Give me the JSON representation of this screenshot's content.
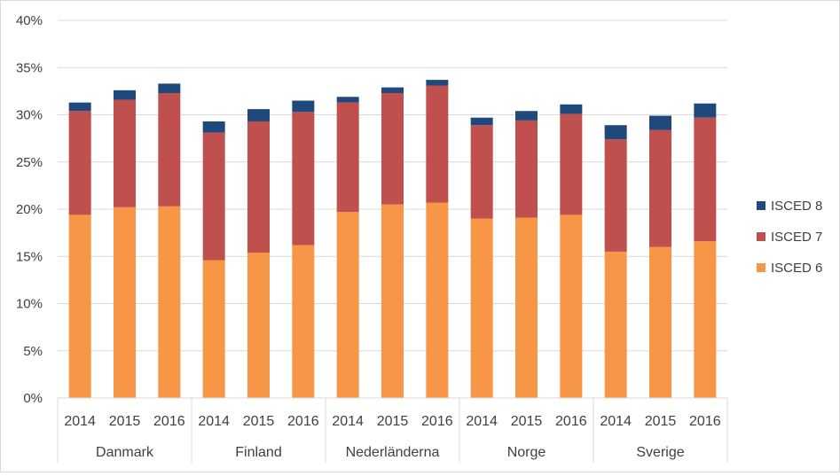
{
  "chart_data": {
    "type": "bar",
    "stacked": true,
    "groups": [
      {
        "name": "Danmark",
        "categories": [
          "2014",
          "2015",
          "2016"
        ]
      },
      {
        "name": "Finland",
        "categories": [
          "2014",
          "2015",
          "2016"
        ]
      },
      {
        "name": "Nederländerna",
        "categories": [
          "2014",
          "2015",
          "2016"
        ]
      },
      {
        "name": "Norge",
        "categories": [
          "2014",
          "2015",
          "2016"
        ]
      },
      {
        "name": "Sverige",
        "categories": [
          "2014",
          "2015",
          "2016"
        ]
      }
    ],
    "series": [
      {
        "name": "ISCED 6",
        "color": "#f79646",
        "values": [
          19.4,
          20.2,
          20.3,
          14.6,
          15.4,
          16.2,
          19.7,
          20.5,
          20.7,
          19.0,
          19.1,
          19.4,
          15.5,
          16.0,
          16.6
        ]
      },
      {
        "name": "ISCED 7",
        "color": "#c0504d",
        "values": [
          11.0,
          11.4,
          12.0,
          13.5,
          13.9,
          14.1,
          11.6,
          11.8,
          12.4,
          9.9,
          10.3,
          10.7,
          11.9,
          12.4,
          13.1
        ]
      },
      {
        "name": "ISCED 8",
        "color": "#1f497d",
        "values": [
          0.9,
          1.0,
          1.0,
          1.2,
          1.3,
          1.2,
          0.6,
          0.6,
          0.6,
          0.8,
          1.0,
          1.0,
          1.5,
          1.5,
          1.5
        ]
      }
    ],
    "ylim": [
      0,
      40
    ],
    "yticks": [
      "0%",
      "5%",
      "10%",
      "15%",
      "20%",
      "25%",
      "30%",
      "35%",
      "40%"
    ],
    "grid": true,
    "legend_position": "right",
    "title": "",
    "xlabel": "",
    "ylabel": ""
  }
}
